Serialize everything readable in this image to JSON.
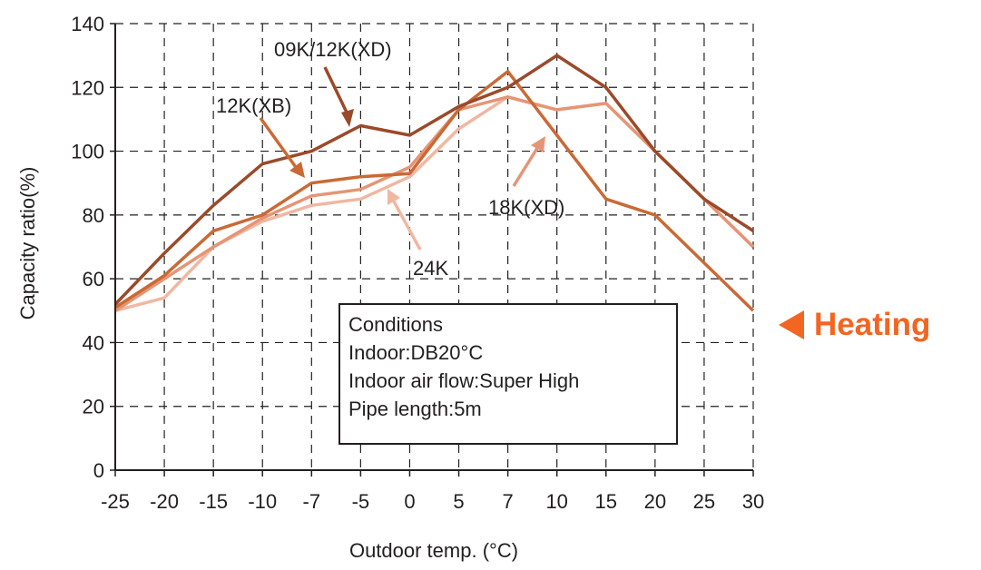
{
  "chart_data": {
    "type": "line",
    "xlabel": "Outdoor temp. (°C)",
    "ylabel": "Capacity ratio(%)",
    "ylim": [
      0,
      140
    ],
    "yticks": [
      "0",
      "20",
      "40",
      "60",
      "80",
      "100",
      "120",
      "140"
    ],
    "categories": [
      "-25",
      "-20",
      "-15",
      "-10",
      "-7",
      "-5",
      "0",
      "5",
      "7",
      "10",
      "15",
      "20",
      "25",
      "30"
    ],
    "grid": true,
    "series": [
      {
        "name": "09K/12K(XD)",
        "color": "#9a4a2a",
        "values": [
          52,
          68,
          83,
          96,
          100,
          108,
          105,
          114,
          120,
          130,
          120,
          100,
          85,
          75
        ]
      },
      {
        "name": "12K(XB)",
        "color": "#c96a36",
        "values": [
          51,
          61,
          75,
          80,
          90,
          92,
          93,
          113,
          125,
          105,
          85,
          80,
          65,
          50
        ]
      },
      {
        "name": "18K(XD)",
        "color": "#e59576",
        "values": [
          50,
          60,
          70,
          79,
          86,
          88,
          95,
          113,
          117,
          113,
          115,
          100,
          85,
          70
        ]
      },
      {
        "name": "24K",
        "color": "#f0b7a2",
        "values": [
          50,
          54,
          70,
          78,
          83,
          85,
          92,
          107,
          117,
          113,
          115,
          100,
          85,
          70
        ]
      }
    ],
    "annotations": {
      "conditions": [
        "Conditions",
        "Indoor:DB20°C",
        "Indoor air flow:Super High",
        "Pipe length:5m"
      ],
      "heating": "Heating"
    }
  }
}
